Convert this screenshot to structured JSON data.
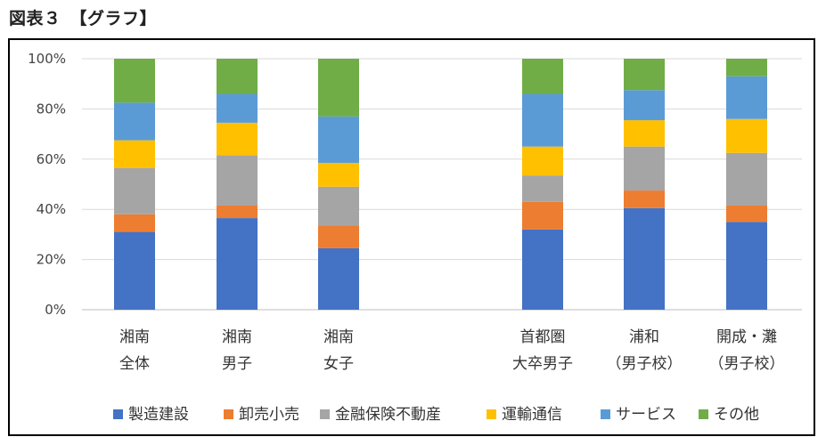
{
  "figure_title": "図表３　【グラフ】",
  "colors": {
    "製造建設": "#4472C4",
    "卸売小売": "#ED7D31",
    "金融保険不動産": "#A5A5A5",
    "運輸通信": "#FFC000",
    "サービス": "#5B9BD5",
    "その他": "#70AD47"
  },
  "chart_data": {
    "type": "bar",
    "stacked": true,
    "categories": [
      [
        "湘南",
        "全体"
      ],
      [
        "湘南",
        "男子"
      ],
      [
        "湘南",
        "女子"
      ],
      [
        "首都圏",
        "大卒男子"
      ],
      [
        "浦和",
        "（男子校）"
      ],
      [
        "開成・灘",
        "（男子校）"
      ]
    ],
    "y_ticks": [
      "0%",
      "20%",
      "40%",
      "60%",
      "80%",
      "100%"
    ],
    "ylim": [
      0,
      100
    ],
    "grid": true,
    "legend_position": "bottom",
    "series": [
      {
        "name": "製造建設",
        "values": [
          31,
          36.5,
          24.5,
          32,
          40.5,
          35
        ]
      },
      {
        "name": "卸売小売",
        "values": [
          7,
          5,
          9,
          11,
          7,
          6.5
        ]
      },
      {
        "name": "金融保険不動産",
        "values": [
          18.5,
          20,
          15.5,
          10.5,
          17.5,
          21
        ]
      },
      {
        "name": "運輸通信",
        "values": [
          11,
          13,
          9.5,
          11.5,
          10.5,
          13.5
        ]
      },
      {
        "name": "サービス",
        "values": [
          15,
          11.5,
          18.5,
          21,
          12,
          17
        ]
      },
      {
        "name": "その他",
        "values": [
          17.5,
          14,
          23,
          14,
          12.5,
          7
        ]
      }
    ]
  }
}
